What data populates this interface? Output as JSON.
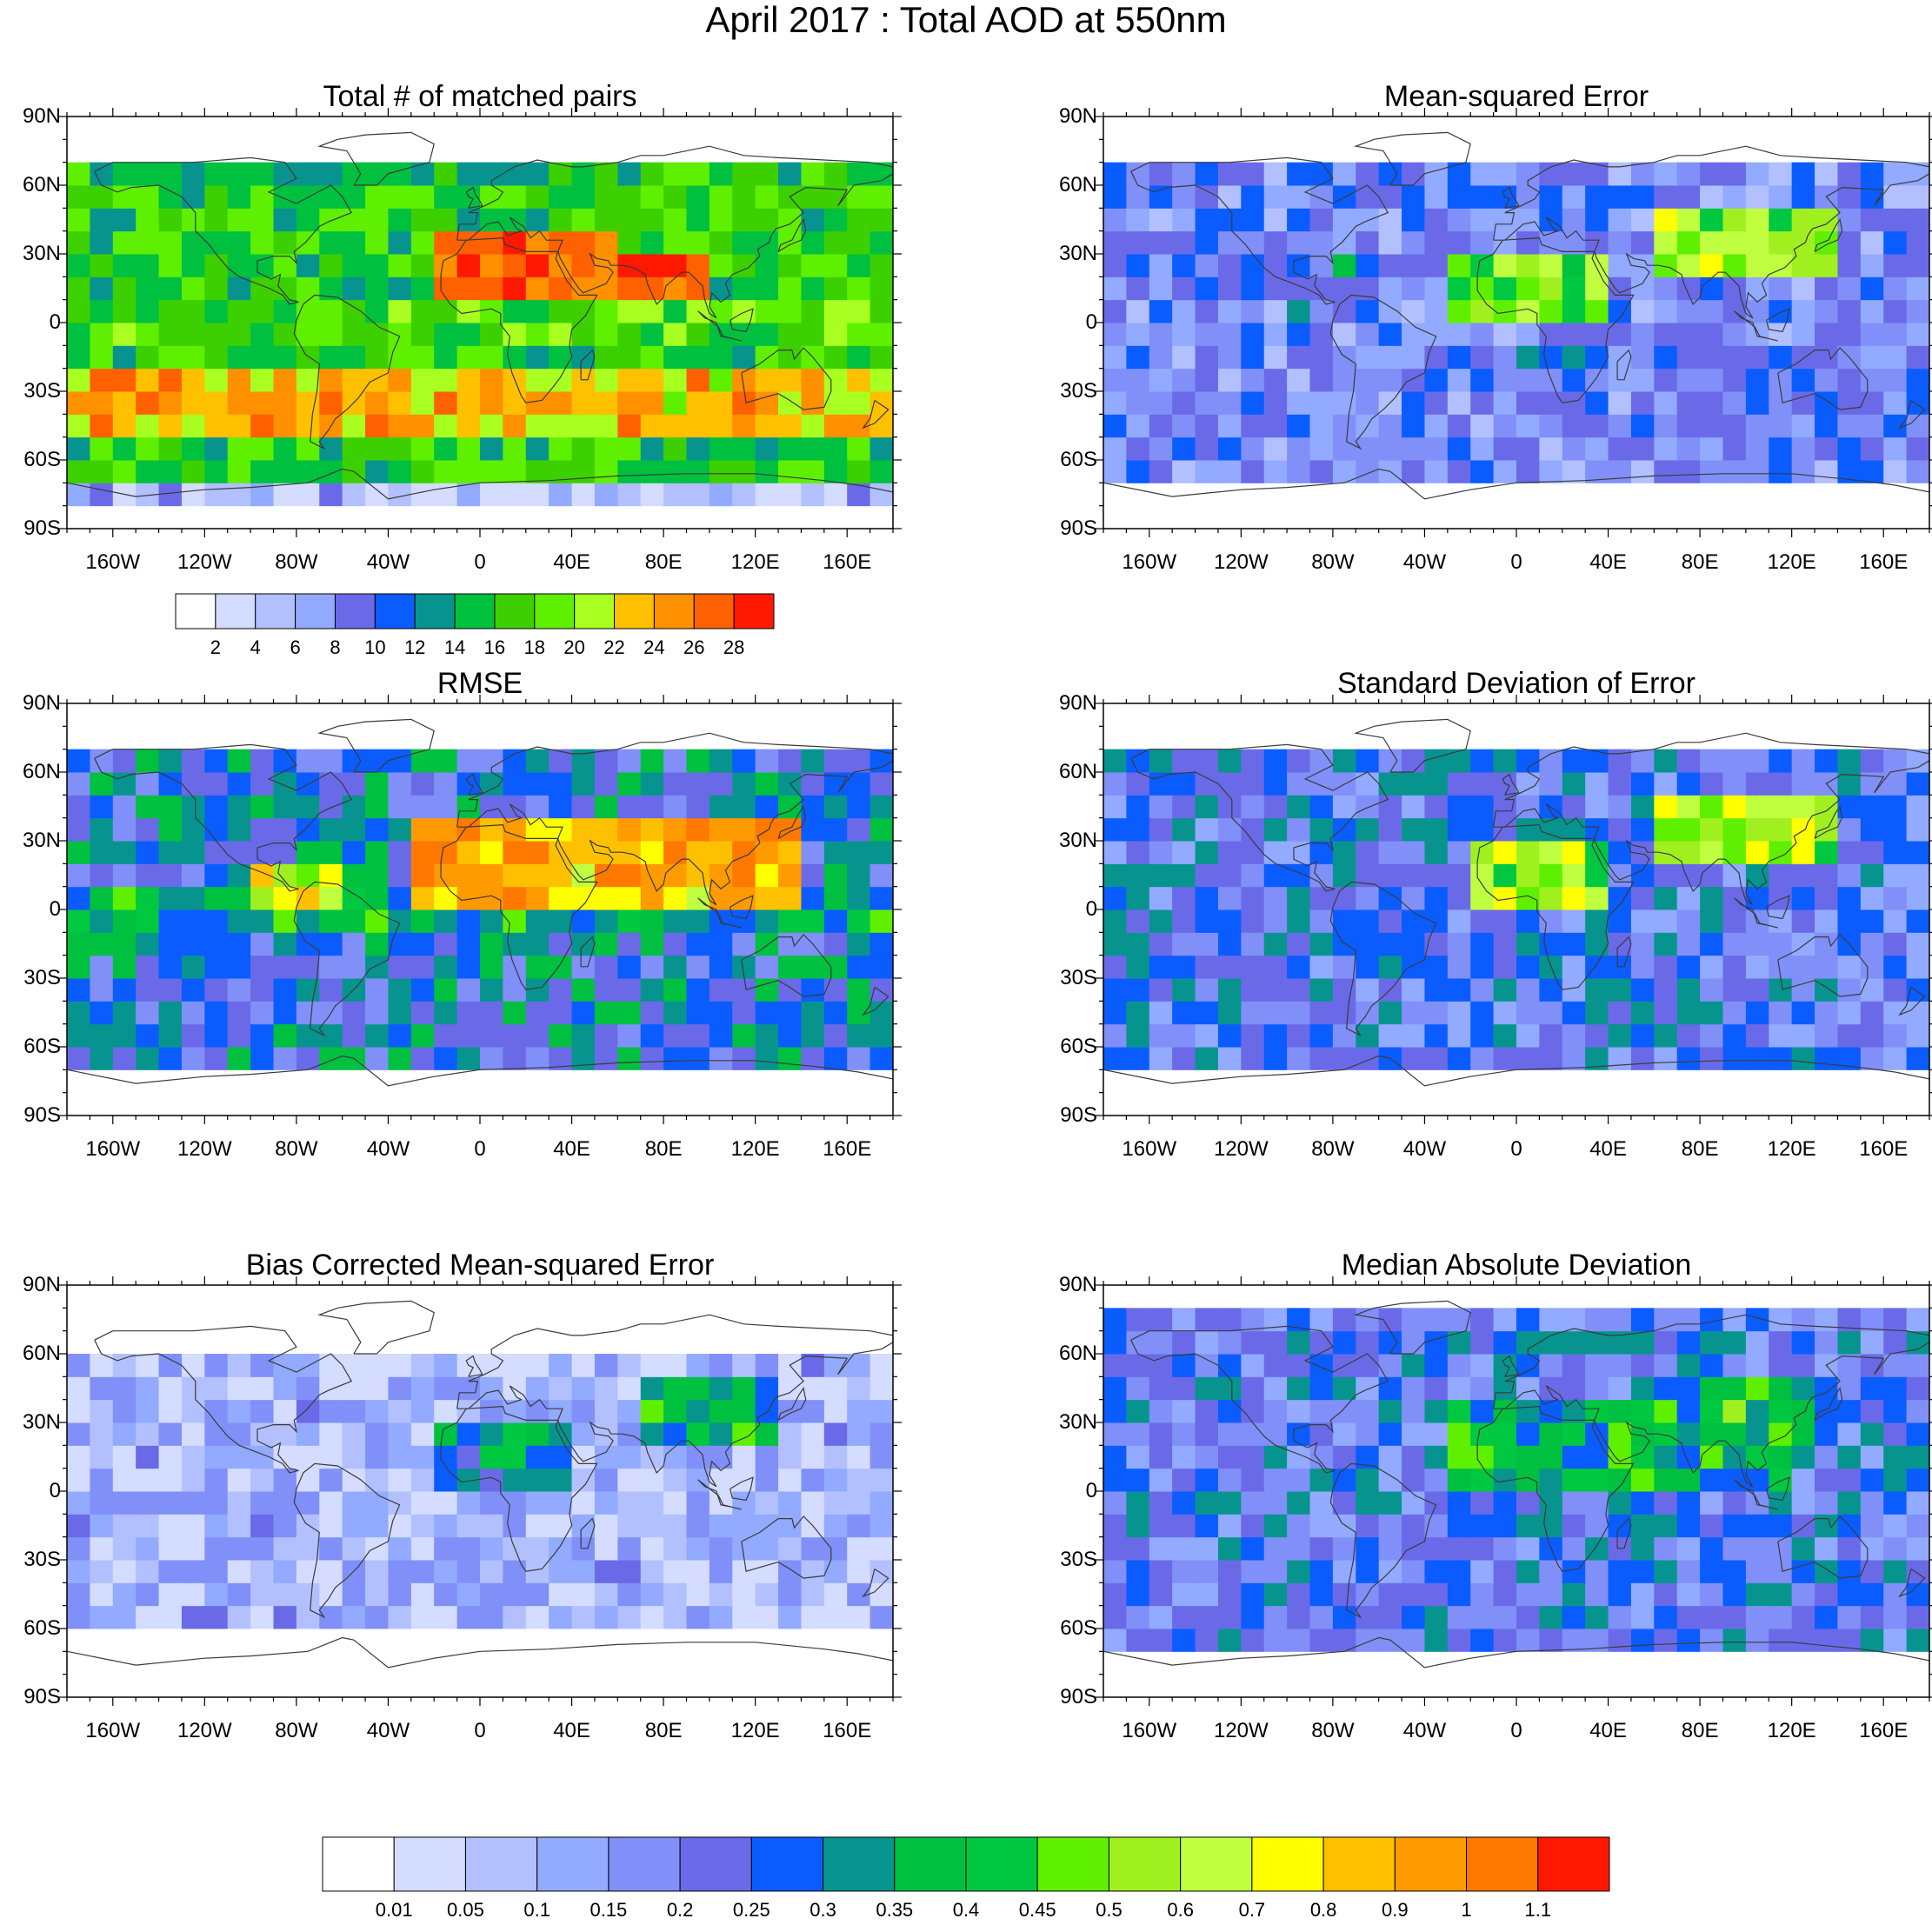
{
  "title": "April 2017 : Total AOD at 550nm",
  "x_axis_labels": [
    "160W",
    "120W",
    "80W",
    "40W",
    "0",
    "40E",
    "80E",
    "120E",
    "160E"
  ],
  "y_axis_labels": [
    "90N",
    "60N",
    "30N",
    "0",
    "30S",
    "60S",
    "90S"
  ],
  "panels": [
    {
      "id": "matched-pairs",
      "title": "Total # of matched pairs",
      "palette": "pairs"
    },
    {
      "id": "mse",
      "title": "Mean-squared Error",
      "palette": "error"
    },
    {
      "id": "rmse",
      "title": "RMSE",
      "palette": "error"
    },
    {
      "id": "sde",
      "title": "Standard Deviation of Error",
      "palette": "error"
    },
    {
      "id": "bcmse",
      "title": "Bias Corrected Mean-squared Error",
      "palette": "error"
    },
    {
      "id": "mad",
      "title": "Median Absolute Deviation",
      "palette": "error"
    }
  ],
  "pairs_legend": {
    "labels": [
      "2",
      "4",
      "6",
      "8",
      "10",
      "12",
      "14",
      "16",
      "18",
      "20",
      "22",
      "24",
      "26",
      "28"
    ],
    "colors": [
      "#ffffff",
      "#d4dcff",
      "#b3c0ff",
      "#92aaff",
      "#6a6ae8",
      "#0a5cff",
      "#08948e",
      "#00c040",
      "#3cd000",
      "#5ef000",
      "#a8ff20",
      "#ffc000",
      "#ff9000",
      "#ff6000",
      "#ff1800"
    ]
  },
  "error_legend": {
    "labels": [
      "0.01",
      "0.05",
      "0.1",
      "0.15",
      "0.2",
      "0.25",
      "0.3",
      "0.35",
      "0.4",
      "0.45",
      "0.5",
      "0.6",
      "0.7",
      "0.8",
      "0.9",
      "1",
      "1.1"
    ],
    "colors": [
      "#ffffff",
      "#d4dcff",
      "#b3c0ff",
      "#92aaff",
      "#8090f8",
      "#6a6ae8",
      "#0a5cff",
      "#08948e",
      "#00c040",
      "#00c840",
      "#5ef000",
      "#a0f020",
      "#c0ff40",
      "#ffff00",
      "#ffc000",
      "#ff9a00",
      "#ff7800",
      "#ff1800"
    ]
  },
  "chart_data": [
    {
      "type": "heatmap",
      "title": "Total # of matched pairs",
      "xlim": [
        -180,
        180
      ],
      "ylim": [
        -90,
        90
      ],
      "color_levels": [
        2,
        4,
        6,
        8,
        10,
        12,
        14,
        16,
        18,
        20,
        22,
        24,
        26,
        28
      ],
      "projection": "cylindrical-equidistant",
      "background": "world coastlines"
    },
    {
      "type": "heatmap",
      "title": "Mean-squared Error",
      "xlim": [
        -180,
        180
      ],
      "ylim": [
        -90,
        90
      ],
      "color_levels": [
        0.01,
        0.05,
        0.1,
        0.15,
        0.2,
        0.25,
        0.3,
        0.35,
        0.4,
        0.45,
        0.5,
        0.6,
        0.7,
        0.8,
        0.9,
        1,
        1.1
      ]
    },
    {
      "type": "heatmap",
      "title": "RMSE",
      "xlim": [
        -180,
        180
      ],
      "ylim": [
        -90,
        90
      ],
      "color_levels": [
        0.01,
        0.05,
        0.1,
        0.15,
        0.2,
        0.25,
        0.3,
        0.35,
        0.4,
        0.45,
        0.5,
        0.6,
        0.7,
        0.8,
        0.9,
        1,
        1.1
      ]
    },
    {
      "type": "heatmap",
      "title": "Standard Deviation of Error",
      "xlim": [
        -180,
        180
      ],
      "ylim": [
        -90,
        90
      ],
      "color_levels": [
        0.01,
        0.05,
        0.1,
        0.15,
        0.2,
        0.25,
        0.3,
        0.35,
        0.4,
        0.45,
        0.5,
        0.6,
        0.7,
        0.8,
        0.9,
        1,
        1.1
      ]
    },
    {
      "type": "heatmap",
      "title": "Bias Corrected Mean-squared Error",
      "xlim": [
        -180,
        180
      ],
      "ylim": [
        -90,
        90
      ],
      "color_levels": [
        0.01,
        0.05,
        0.1,
        0.15,
        0.2,
        0.25,
        0.3,
        0.35,
        0.4,
        0.45,
        0.5,
        0.6,
        0.7,
        0.8,
        0.9,
        1,
        1.1
      ]
    },
    {
      "type": "heatmap",
      "title": "Median Absolute Deviation",
      "xlim": [
        -180,
        180
      ],
      "ylim": [
        -90,
        90
      ],
      "color_levels": [
        0.01,
        0.05,
        0.1,
        0.15,
        0.2,
        0.25,
        0.3,
        0.35,
        0.4,
        0.45,
        0.5,
        0.6,
        0.7,
        0.8,
        0.9,
        1,
        1.1
      ]
    }
  ]
}
